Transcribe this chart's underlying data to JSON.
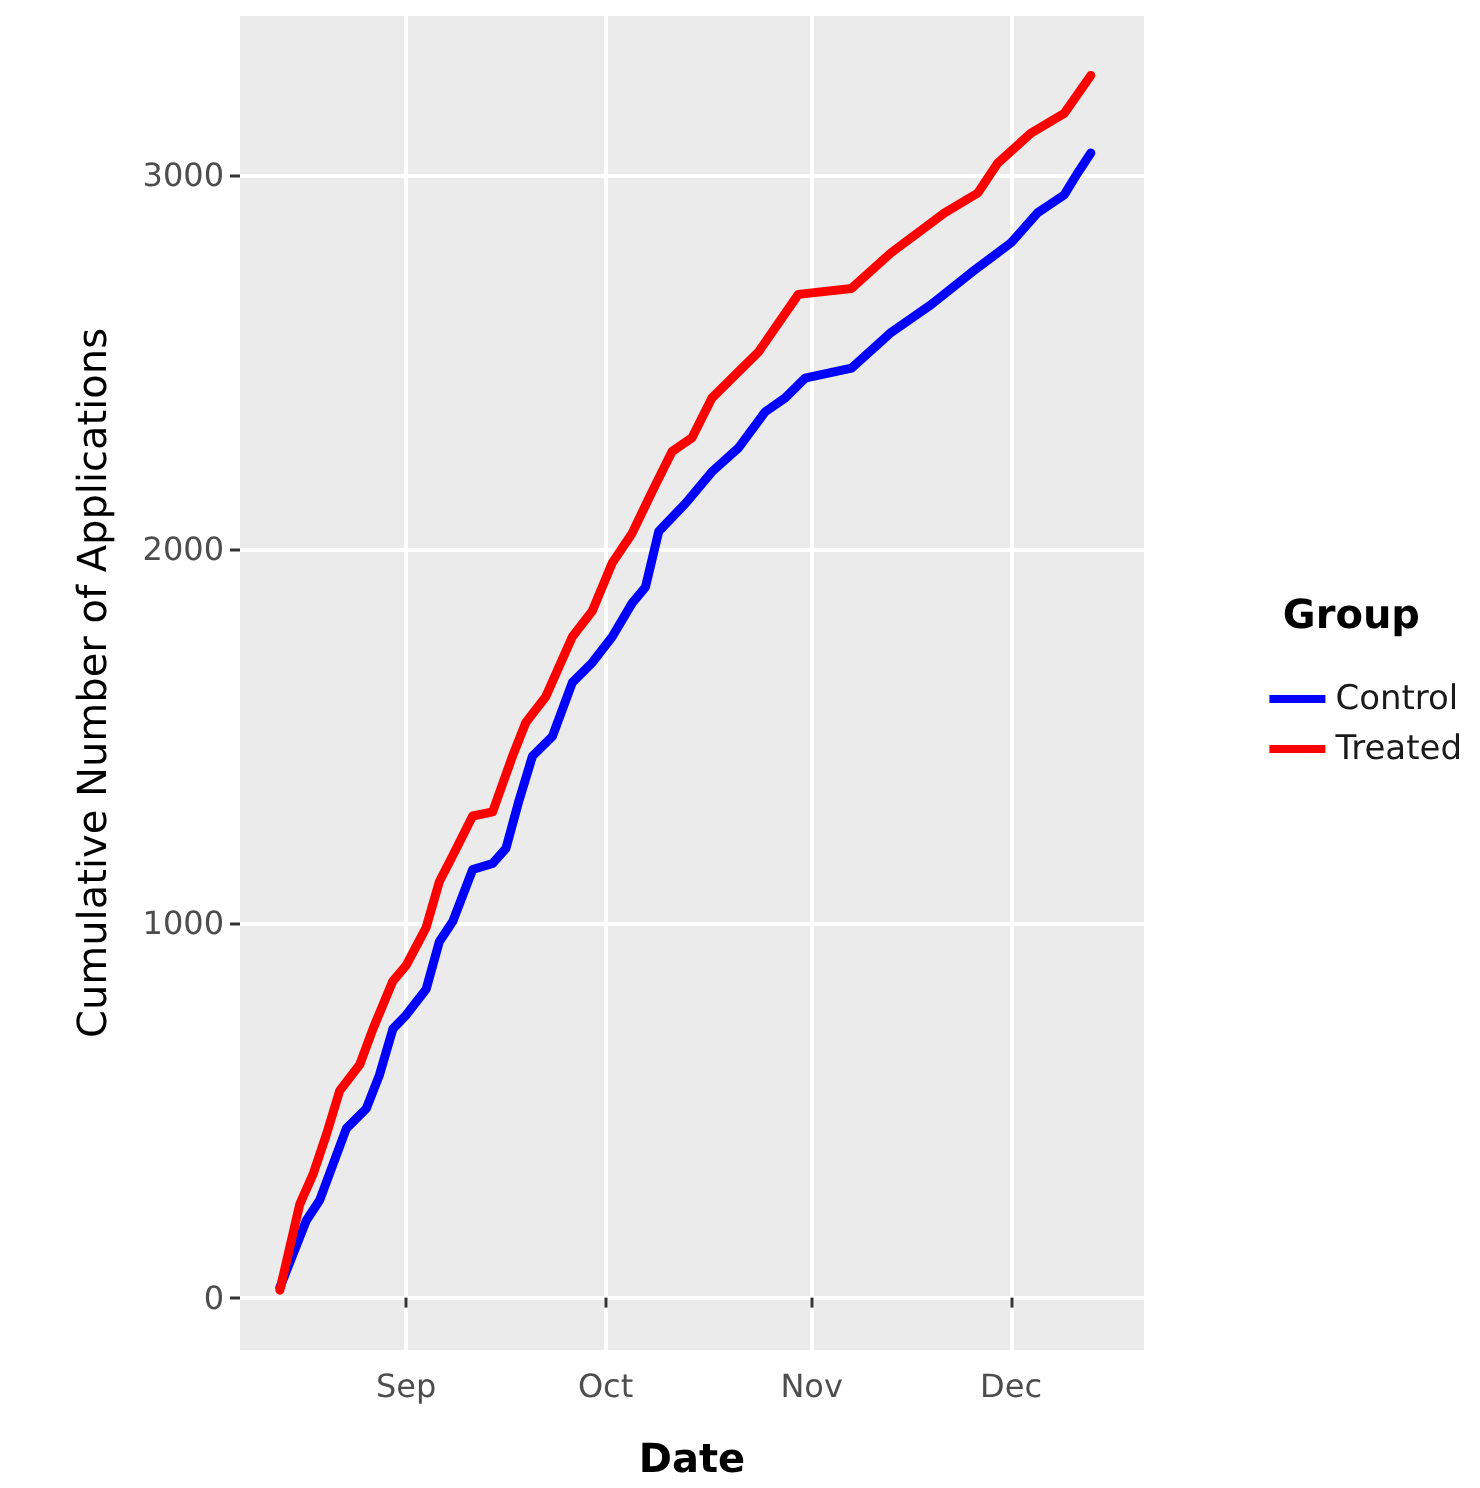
{
  "chart_data": {
    "type": "line",
    "xlabel": "Date",
    "ylabel": "Cumulative Number of Applications",
    "legend_title": "Group",
    "legend": "right",
    "grid": true,
    "marker": "none",
    "line_style": "solid",
    "xlim": [
      "--08-07",
      "--12-21"
    ],
    "xticks": [
      {
        "value": "--09-01",
        "label": "Sep"
      },
      {
        "value": "--10-01",
        "label": "Oct"
      },
      {
        "value": "--11-01",
        "label": "Nov"
      },
      {
        "value": "--12-01",
        "label": "Dec"
      }
    ],
    "ylim": [
      -140,
      3425
    ],
    "yticks": [
      0,
      1000,
      2000,
      3000
    ],
    "series": [
      {
        "name": "Control",
        "color": "#0000ff",
        "x": [
          "--08-13",
          "--08-17",
          "--08-19",
          "--08-23",
          "--08-26",
          "--08-28",
          "--08-30",
          "--09-01",
          "--09-04",
          "--09-06",
          "--09-08",
          "--09-11",
          "--09-14",
          "--09-16",
          "--09-18",
          "--09-20",
          "--09-23",
          "--09-26",
          "--09-29",
          "--10-02",
          "--10-05",
          "--10-07",
          "--10-09",
          "--10-13",
          "--10-17",
          "--10-21",
          "--10-25",
          "--10-28",
          "--10-31",
          "--11-07",
          "--11-13",
          "--11-19",
          "--11-25",
          "--12-01",
          "--12-05",
          "--12-09",
          "--12-11",
          "--12-13"
        ],
        "values": [
          27,
          207,
          261,
          452,
          505,
          596,
          718,
          755,
          824,
          952,
          1005,
          1144,
          1160,
          1200,
          1330,
          1447,
          1500,
          1644,
          1697,
          1766,
          1856,
          1899,
          2048,
          2122,
          2207,
          2271,
          2367,
          2404,
          2457,
          2484,
          2580,
          2654,
          2739,
          2819,
          2899,
          2947,
          3005,
          3059
        ]
      },
      {
        "name": "Treated",
        "color": "#ff0000",
        "x": [
          "--08-13",
          "--08-16",
          "--08-18",
          "--08-20",
          "--08-22",
          "--08-25",
          "--08-27",
          "--08-30",
          "--09-01",
          "--09-04",
          "--09-06",
          "--09-08",
          "--09-11",
          "--09-14",
          "--09-17",
          "--09-19",
          "--09-22",
          "--09-26",
          "--09-29",
          "--10-02",
          "--10-05",
          "--10-08",
          "--10-11",
          "--10-14",
          "--10-17",
          "--10-20",
          "--10-24",
          "--10-30",
          "--11-07",
          "--11-13",
          "--11-21",
          "--11-26",
          "--11-29",
          "--12-04",
          "--12-09",
          "--12-13"
        ],
        "values": [
          20,
          250,
          330,
          436,
          553,
          622,
          718,
          846,
          888,
          989,
          1112,
          1181,
          1287,
          1298,
          1447,
          1537,
          1606,
          1766,
          1835,
          1963,
          2043,
          2154,
          2261,
          2298,
          2404,
          2457,
          2527,
          2681,
          2697,
          2793,
          2899,
          2952,
          3032,
          3112,
          3165,
          3266
        ]
      }
    ]
  }
}
